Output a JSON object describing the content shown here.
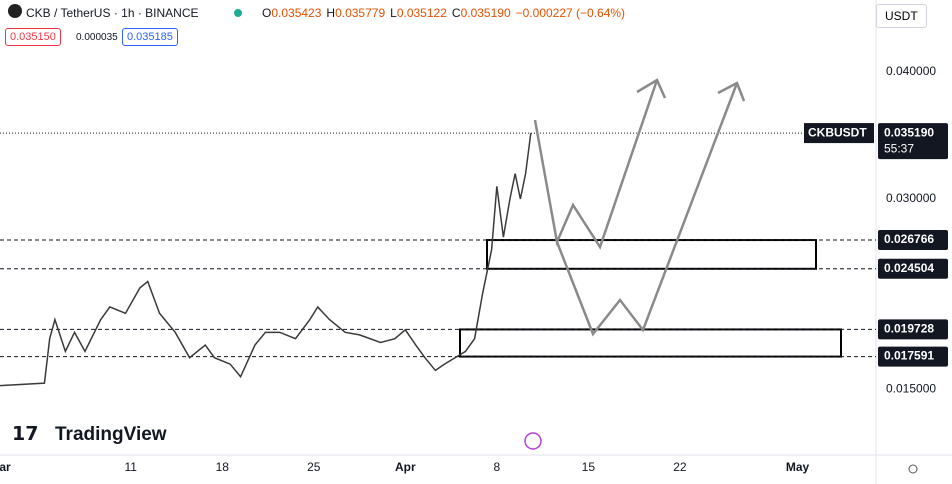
{
  "header": {
    "symbol": "CKB / TetherUS · 1h · BINANCE",
    "ohlc": [
      {
        "label": "O",
        "value": "0.035423"
      },
      {
        "label": "H",
        "value": "0.035779"
      },
      {
        "label": "L",
        "value": "0.035122"
      },
      {
        "label": "C",
        "value": "0.035190"
      }
    ],
    "change": "−0.000227 (−0.64%)",
    "bid": "0.035150",
    "spread": "0.000035",
    "ask": "0.035185",
    "currency": "USDT"
  },
  "chart_data": {
    "type": "line",
    "color": "#3a3a3a",
    "x": [
      0,
      3.4,
      3.8,
      4.2,
      5,
      5.7,
      6.5,
      7.7,
      8.4,
      9.6,
      10.7,
      11.3,
      12.2,
      13.4,
      14.5,
      15.7,
      16.4,
      17.6,
      18.4,
      19.5,
      20.3,
      21.4,
      22.6,
      23.7,
      24.3,
      25.2,
      26.4,
      27.5,
      29.1,
      30.2,
      31,
      31.8,
      32.5,
      33.3,
      34,
      34.8,
      35.6,
      36.3,
      36.9,
      37.3,
      37.6,
      38,
      38.5,
      39,
      39.4,
      39.8,
      40.2,
      40.6
    ],
    "values": [
      0.0153,
      0.0155,
      0.019,
      0.0205,
      0.018,
      0.0195,
      0.018,
      0.0205,
      0.0215,
      0.021,
      0.023,
      0.0235,
      0.021,
      0.0195,
      0.0175,
      0.0185,
      0.0175,
      0.017,
      0.016,
      0.0185,
      0.0195,
      0.0195,
      0.019,
      0.0205,
      0.0215,
      0.0205,
      0.0195,
      0.0193,
      0.0187,
      0.019,
      0.0197,
      0.0185,
      0.0175,
      0.0165,
      0.017,
      0.0175,
      0.018,
      0.019,
      0.0225,
      0.0245,
      0.026,
      0.031,
      0.027,
      0.03,
      0.032,
      0.03,
      0.032,
      0.0352
    ],
    "xlim": [
      0,
      67
    ],
    "ylim": [
      0.00984,
      0.04567
    ],
    "xticks": [
      {
        "value": 0,
        "label": "Mar"
      },
      {
        "value": 10,
        "label": "11"
      },
      {
        "value": 17,
        "label": "18"
      },
      {
        "value": 24,
        "label": "25"
      },
      {
        "value": 31,
        "label": "Apr"
      },
      {
        "value": 38,
        "label": "8"
      },
      {
        "value": 45,
        "label": "15"
      },
      {
        "value": 52,
        "label": "22"
      },
      {
        "value": 61,
        "label": "May"
      }
    ],
    "yticks": [
      {
        "value": 0.04,
        "label": "0.040000"
      },
      {
        "value": 0.03,
        "label": "0.030000"
      },
      {
        "value": 0.015,
        "label": "0.015000"
      }
    ],
    "levels": [
      0.026766,
      0.024504,
      0.019728,
      0.017591
    ],
    "current": {
      "name": "CKBUSDT",
      "price": {
        "value": 0.03519,
        "label": "0.035190"
      },
      "countdown": "55:37"
    },
    "logo": "TradingView"
  }
}
